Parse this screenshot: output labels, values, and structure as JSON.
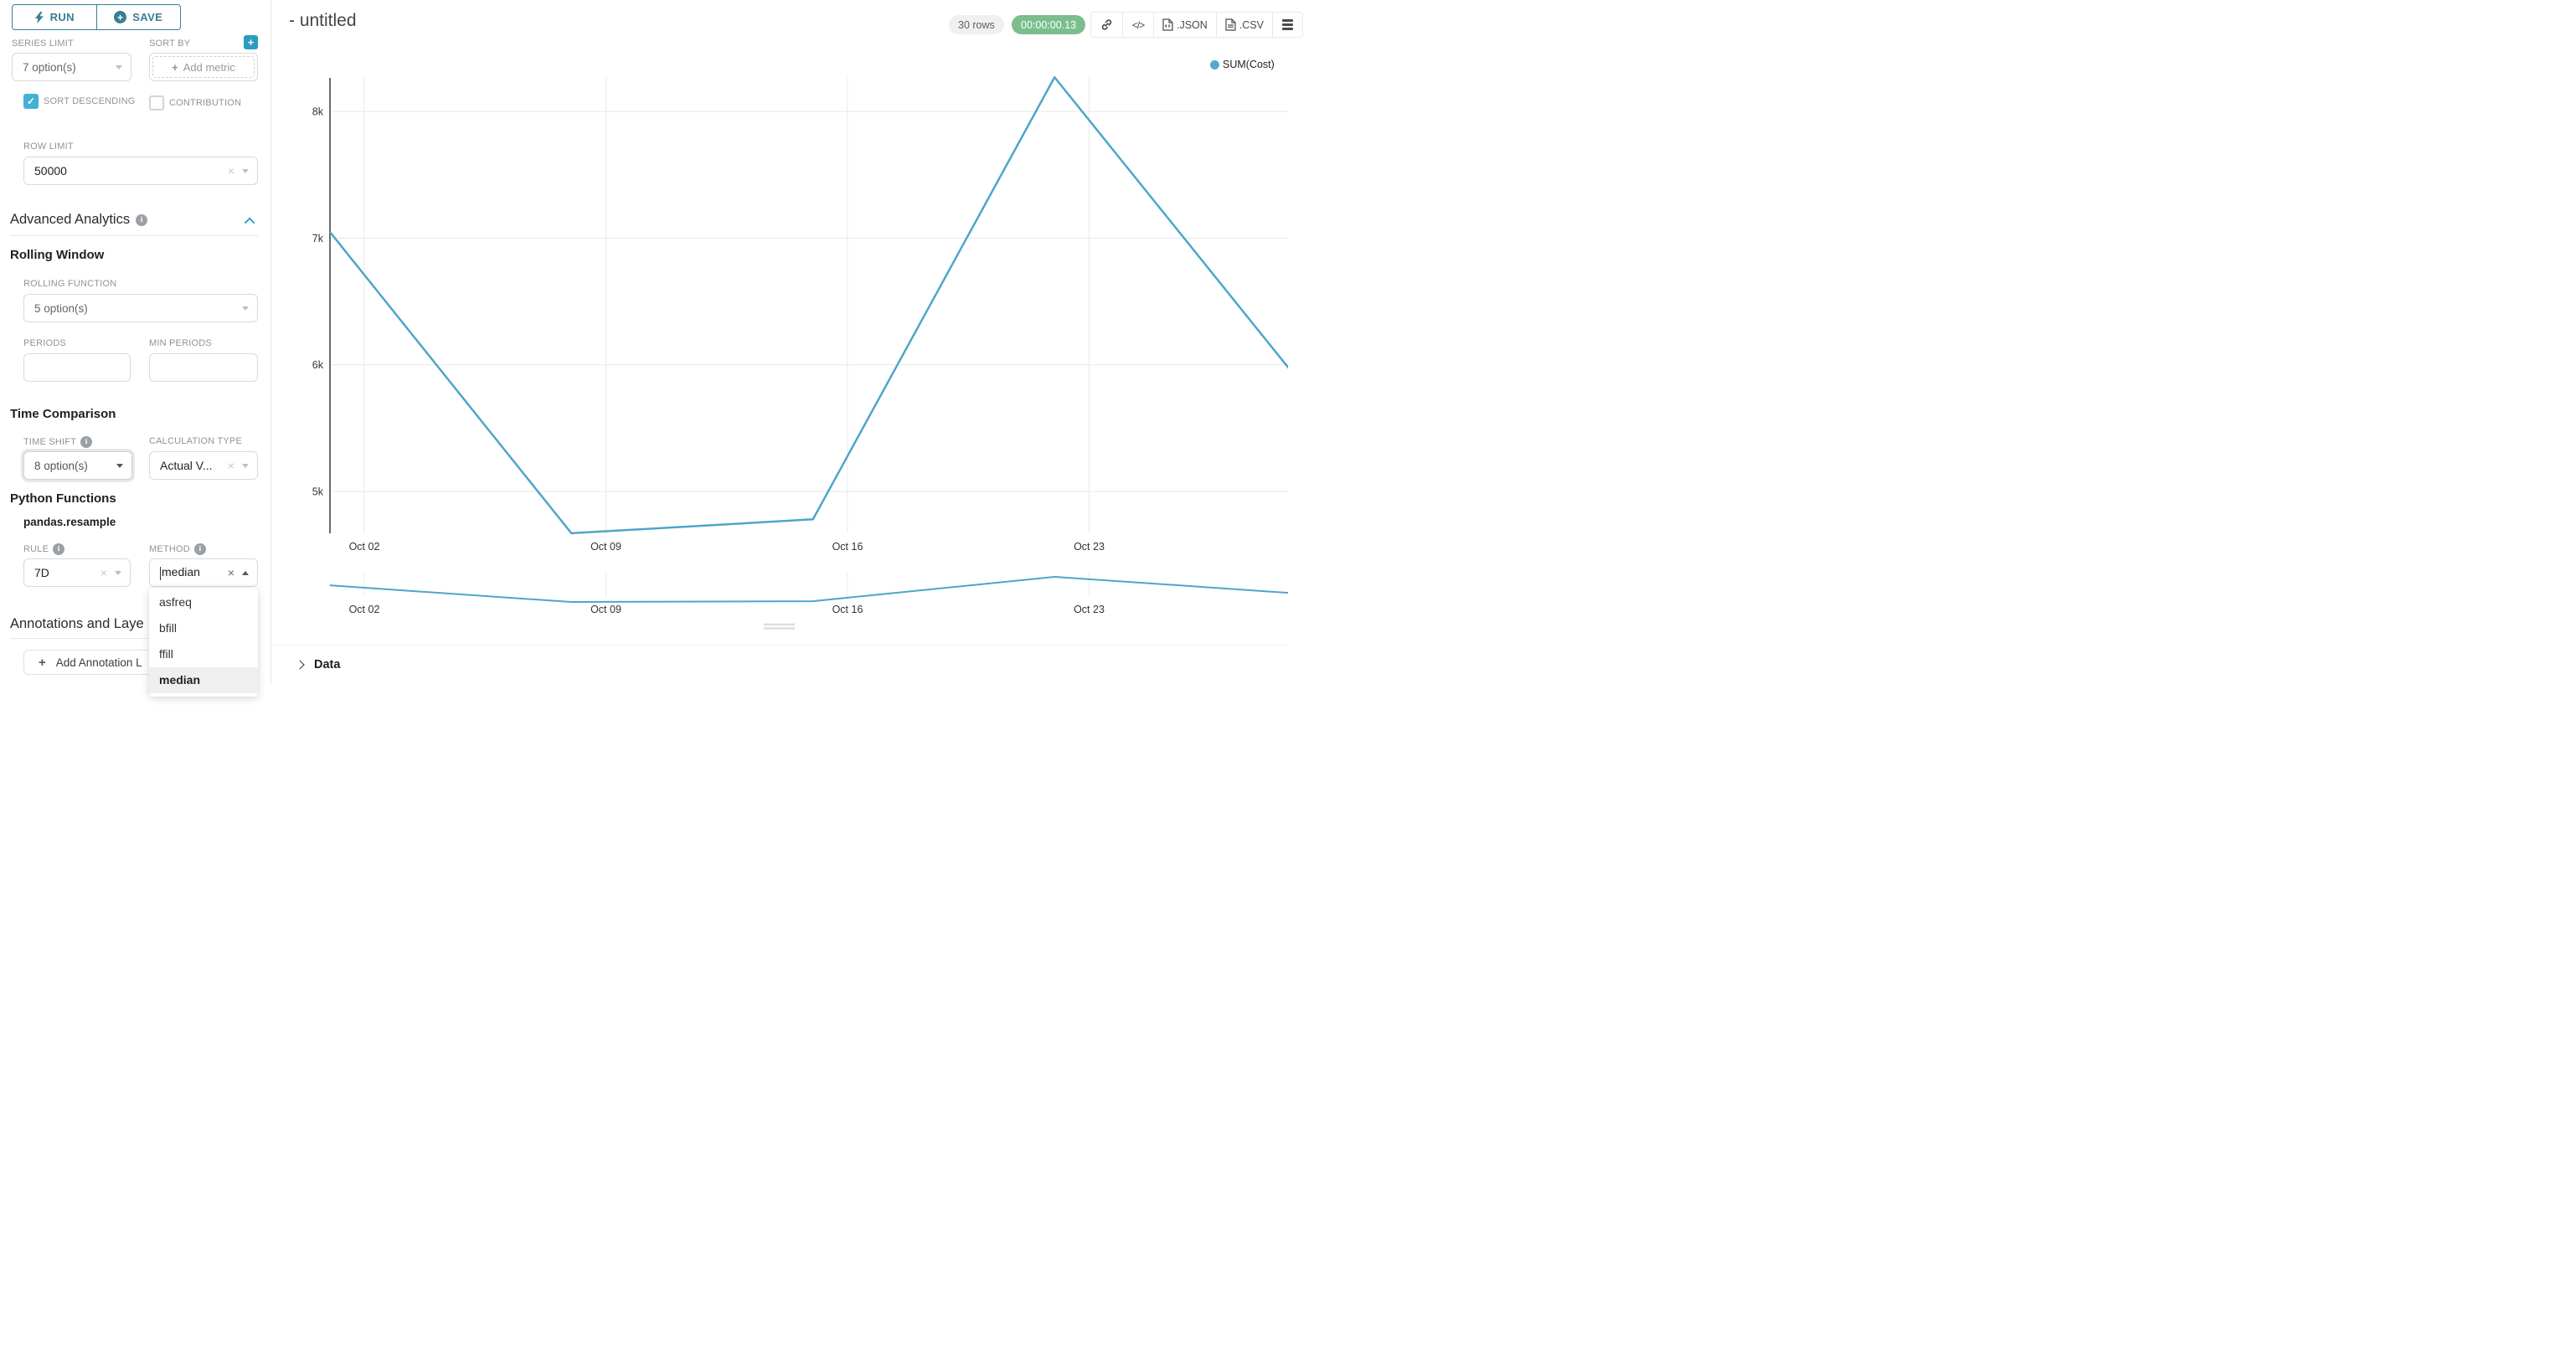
{
  "sidebar": {
    "run_label": "RUN",
    "save_label": "SAVE",
    "series_limit": {
      "label": "SERIES LIMIT",
      "value": "7 option(s)"
    },
    "sort_by": {
      "label": "SORT BY",
      "add_metric_label": "Add metric"
    },
    "sort_descending": {
      "label": "SORT DESCENDING",
      "checked": true
    },
    "contribution": {
      "label": "CONTRIBUTION",
      "checked": false
    },
    "row_limit": {
      "label": "ROW LIMIT",
      "value": "50000"
    },
    "advanced_analytics_title": "Advanced Analytics",
    "rolling_window_title": "Rolling Window",
    "rolling_function": {
      "label": "ROLLING FUNCTION",
      "value": "5 option(s)"
    },
    "periods": {
      "label": "PERIODS",
      "value": ""
    },
    "min_periods": {
      "label": "MIN PERIODS",
      "value": ""
    },
    "time_comparison_title": "Time Comparison",
    "time_shift": {
      "label": "TIME SHIFT",
      "value": "8 option(s)"
    },
    "calculation_type": {
      "label": "CALCULATION TYPE",
      "value": "Actual V..."
    },
    "python_functions_title": "Python Functions",
    "python_functions_subtitle": "pandas.resample",
    "rule": {
      "label": "RULE",
      "value": "7D"
    },
    "method": {
      "label": "METHOD",
      "value": "median",
      "options": [
        "asfreq",
        "bfill",
        "ffill",
        "median"
      ],
      "selected": "median"
    },
    "annotations_title": "Annotations and Laye",
    "add_annotation_label": "Add Annotation L"
  },
  "header": {
    "title": "- untitled",
    "rows_badge": "30 rows",
    "timer": "00:00:00.13",
    "code_glyph": "</>",
    "json_label": ".JSON",
    "csv_label": ".CSV"
  },
  "chart_data": {
    "type": "line",
    "series": [
      {
        "name": "SUM(Cost)",
        "color": "#4FA5C9",
        "x": [
          "Oct 01",
          "Oct 08",
          "Oct 15",
          "Oct 22",
          "Oct 29"
        ],
        "values": [
          7050,
          4670,
          4780,
          8270,
          5900
        ]
      }
    ],
    "x_tick_labels": [
      "Oct 02",
      "Oct 09",
      "Oct 16",
      "Oct 23"
    ],
    "y_ticks": [
      8000,
      7000,
      6000,
      5000
    ],
    "y_tick_labels": [
      "8k",
      "7k",
      "6k",
      "5k"
    ],
    "ylim": [
      4650,
      8400
    ],
    "grid": true,
    "legend_position": "top-right",
    "preview_strip": true
  },
  "data_panel": {
    "label": "Data"
  },
  "colors": {
    "accent_teal": "#377e93",
    "checkbox_teal": "#41b1d4",
    "line_blue": "#4FA5C9",
    "timer_green": "#7bbe8d",
    "gridline": "#e8e8e8"
  }
}
